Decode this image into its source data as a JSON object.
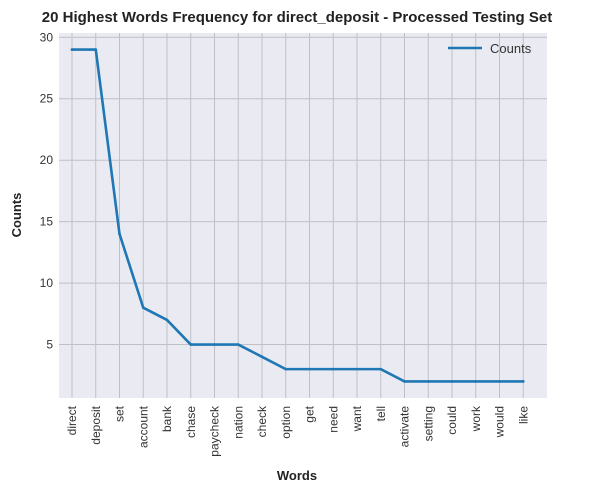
{
  "chart_data": {
    "type": "line",
    "title": "20 Highest Words Frequency for direct_deposit - Processed Testing Set",
    "xlabel": "Words",
    "ylabel": "Counts",
    "categories": [
      "direct",
      "deposit",
      "set",
      "account",
      "bank",
      "chase",
      "paycheck",
      "nation",
      "check",
      "option",
      "get",
      "need",
      "want",
      "tell",
      "activate",
      "setting",
      "could",
      "work",
      "would",
      "like"
    ],
    "series": [
      {
        "name": "Counts",
        "values": [
          29,
          29,
          14,
          8,
          7,
          5,
          5,
          5,
          4,
          3,
          3,
          3,
          3,
          3,
          2,
          2,
          2,
          2,
          2,
          2
        ]
      }
    ],
    "yticks": [
      5,
      10,
      15,
      20,
      25,
      30
    ],
    "ylim": [
      0.65,
      30.35
    ],
    "grid": true,
    "legend": "top-right",
    "colors": {
      "line": "#1f77b4",
      "background": "#eaeaf2",
      "grid": "#c0c0c6"
    }
  }
}
